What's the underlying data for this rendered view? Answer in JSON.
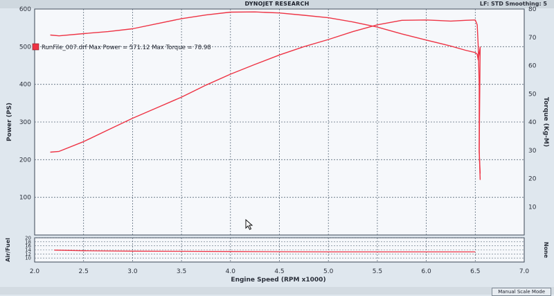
{
  "header": {
    "title": "DYNOJET RESEARCH",
    "right_text": "LF: STD   Smoothing: 5"
  },
  "status_bar": {
    "mode_label": "Manual Scale Mode"
  },
  "colors": {
    "plot_bg": "#f6f8fb",
    "grid": "#5a6a7a",
    "trace": "#ee3344",
    "axis_text": "#2a2f3a"
  },
  "chart_data": [
    {
      "type": "line",
      "title": "DYNOJET RESEARCH",
      "xlabel": "Engine Speed (RPM x1000)",
      "ylabel": "Power (PS)",
      "y2label": "Torque (Kg-M)",
      "xlim": [
        2.0,
        7.0
      ],
      "ylim": [
        0,
        600
      ],
      "y2lim": [
        0,
        80
      ],
      "x_ticks": [
        "2.0",
        "2.5",
        "3.0",
        "3.5",
        "4.0",
        "4.5",
        "5.0",
        "5.5",
        "6.0",
        "6.5",
        "7.0"
      ],
      "y_ticks": [
        "100",
        "200",
        "300",
        "400",
        "500",
        "600"
      ],
      "y2_ticks": [
        "10",
        "20",
        "30",
        "40",
        "50",
        "60",
        "70",
        "80"
      ],
      "grid": true,
      "legend": {
        "position": "top-left",
        "entries": [
          {
            "label": "RunFile_007.drf Max Power = 571.12 Max Torque = 78.98",
            "color": "#ee3344"
          }
        ]
      },
      "series": [
        {
          "axis": "left",
          "x": [
            2.16,
            2.25,
            2.5,
            2.75,
            3.0,
            3.25,
            3.5,
            3.75,
            4.0,
            4.25,
            4.5,
            4.75,
            5.0,
            5.25,
            5.5,
            5.75,
            6.0,
            6.25,
            6.4,
            6.5,
            6.52,
            6.53,
            6.54,
            6.54,
            6.55
          ],
          "y": [
            220,
            222,
            248,
            279,
            310,
            338,
            366,
            398,
            427,
            453,
            478,
            500,
            519,
            540,
            558,
            570,
            571,
            568,
            570,
            571,
            558,
            505,
            400,
            220,
            163
          ]
        },
        {
          "axis": "right",
          "x": [
            2.16,
            2.25,
            2.5,
            2.75,
            3.0,
            3.25,
            3.5,
            3.75,
            4.0,
            4.25,
            4.5,
            4.75,
            5.0,
            5.25,
            5.5,
            5.75,
            6.0,
            6.25,
            6.4,
            6.5,
            6.52,
            6.53,
            6.55,
            6.54,
            6.55
          ],
          "y": [
            70.8,
            70.5,
            71.3,
            72.0,
            73.0,
            74.8,
            76.6,
            77.9,
            78.9,
            78.98,
            78.6,
            77.8,
            76.9,
            75.4,
            73.6,
            71.2,
            69.0,
            66.9,
            65.4,
            64.6,
            64.0,
            62.0,
            66.5,
            30.0,
            19.5
          ]
        }
      ]
    },
    {
      "type": "line",
      "ylabel": "Air/Fuel",
      "y2label": "None",
      "ylim": [
        8,
        20
      ],
      "y_ticks": [
        "10",
        "12",
        "14",
        "16",
        "18",
        "20"
      ],
      "xlim": [
        2.0,
        7.0
      ],
      "grid": true,
      "series": [
        {
          "x": [
            2.2,
            2.5,
            3.0,
            3.5,
            4.0,
            4.5,
            5.0,
            5.5,
            6.0,
            6.5
          ],
          "y": [
            13.9,
            13.6,
            13.4,
            13.3,
            13.2,
            13.1,
            13.0,
            13.0,
            13.0,
            13.0
          ]
        }
      ]
    }
  ]
}
